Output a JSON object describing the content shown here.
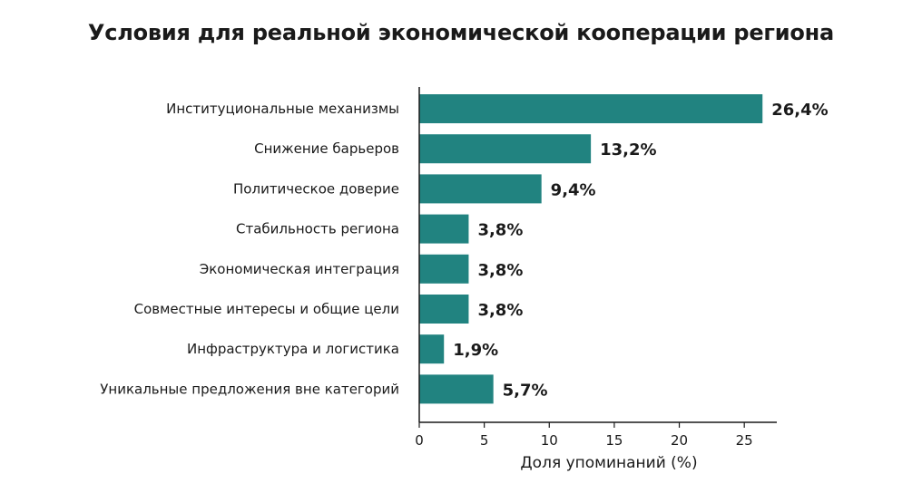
{
  "chart_data": {
    "type": "bar",
    "orientation": "horizontal",
    "title": "Условия для реальной экономической кооперации региона",
    "xlabel": "Доля упоминаний (%)",
    "ylabel": "",
    "categories": [
      "Институциональные механизмы",
      "Снижение барьеров",
      "Политическое доверие",
      "Стабильность региона",
      "Экономическая интеграция",
      "Совместные интересы и общие цели",
      "Инфраструктура и логистика",
      "Уникальные предложения вне категорий"
    ],
    "values": [
      26.4,
      13.2,
      9.4,
      3.8,
      3.8,
      3.8,
      1.9,
      5.7
    ],
    "value_labels": [
      "26,4%",
      "13,2%",
      "9,4%",
      "3,8%",
      "3,8%",
      "3,8%",
      "1,9%",
      "5,7%"
    ],
    "xlim": [
      0,
      27.5
    ],
    "xticks": [
      0,
      5,
      10,
      15,
      20,
      25
    ],
    "xtick_labels": [
      "0",
      "5",
      "10",
      "15",
      "20",
      "25"
    ],
    "grid": false,
    "legend": "none",
    "bar_color": "#218380"
  }
}
